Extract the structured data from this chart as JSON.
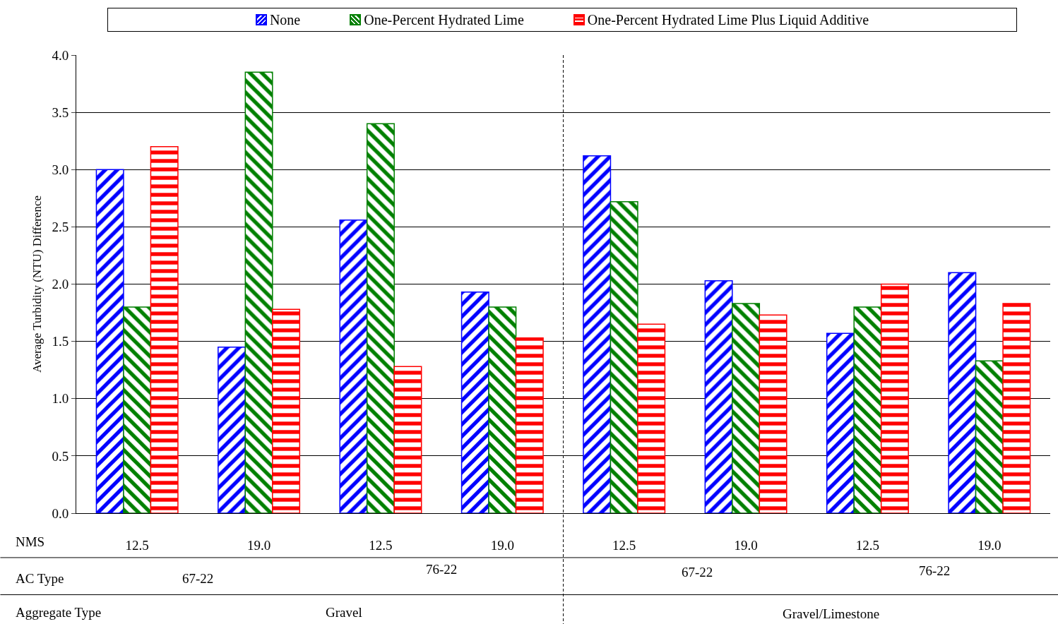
{
  "chart_data": {
    "type": "bar",
    "ylabel": "Average Turbidity (NTU) Difference",
    "categories": [
      "12.5",
      "19.0",
      "12.5",
      "19.0",
      "12.5",
      "19.0",
      "12.5",
      "19.0"
    ],
    "series": [
      {
        "name": "None",
        "color": "#0000ff",
        "values": [
          3.0,
          1.45,
          2.56,
          1.93,
          3.12,
          2.03,
          1.57,
          2.1
        ]
      },
      {
        "name": "One-Percent Hydrated Lime",
        "color": "#008000",
        "values": [
          1.8,
          3.85,
          3.4,
          1.8,
          2.72,
          1.83,
          1.8,
          1.33
        ]
      },
      {
        "name": "One-Percent Hydrated Lime Plus Liquid Additive",
        "color": "#ff0000",
        "values": [
          3.2,
          1.78,
          1.28,
          1.53,
          1.65,
          1.73,
          2.0,
          1.83
        ]
      }
    ],
    "ylim": [
      0,
      4
    ],
    "yticks": [
      {
        "value": 0,
        "label": "0.0"
      },
      {
        "value": 0.5,
        "label": "0.5"
      },
      {
        "value": 1,
        "label": "1.0"
      },
      {
        "value": 1.5,
        "label": "1.5"
      },
      {
        "value": 2,
        "label": "2.0"
      },
      {
        "value": 2.5,
        "label": "2.5"
      },
      {
        "value": 3,
        "label": "3.0"
      },
      {
        "value": 3.5,
        "label": "3.5"
      },
      {
        "value": 4,
        "label": "4.0"
      }
    ],
    "grid": "y",
    "legend": "top",
    "annotations": [
      "NMS",
      "AC Type",
      "67-22",
      "76-22",
      "67-22",
      "76-22",
      "Aggregate Type",
      "Gravel",
      "Gravel/Limestone"
    ]
  }
}
